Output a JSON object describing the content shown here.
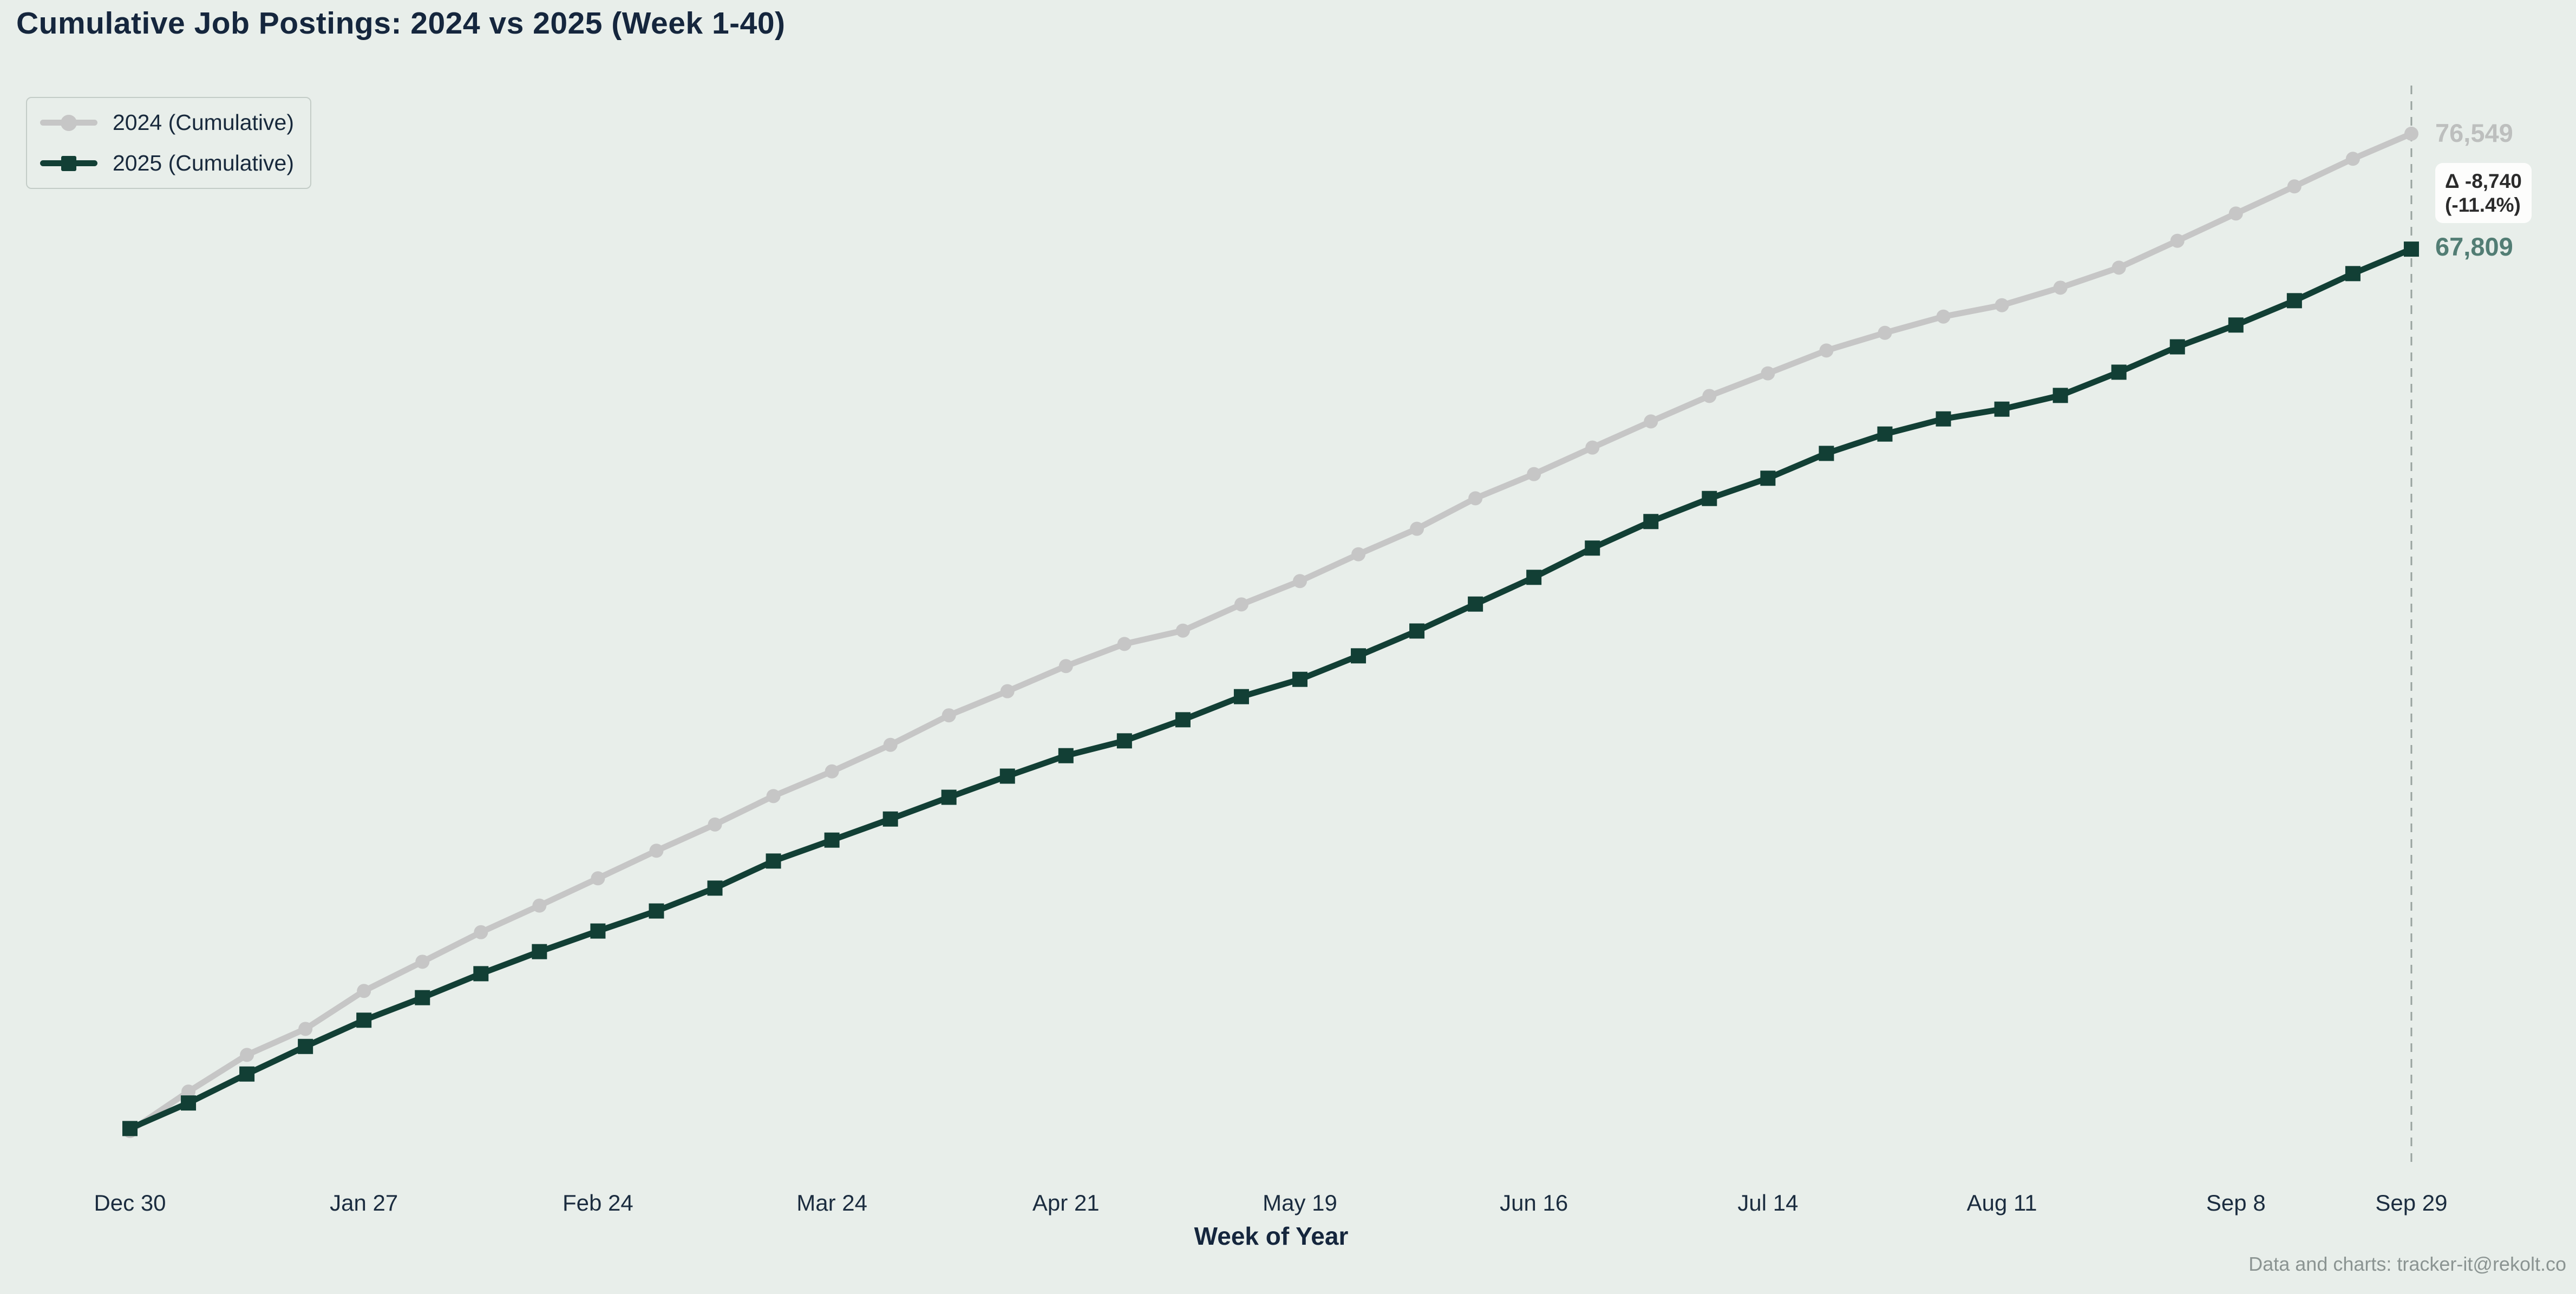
{
  "page": {
    "background_color": "#e8eeea",
    "footer": "Data and charts: tracker-it@rekolt.co"
  },
  "legend": {
    "items": [
      {
        "label": "2024 (Cumulative)",
        "color": "#c6c6c6",
        "marker": "circle"
      },
      {
        "label": "2025 (Cumulative)",
        "color": "#123f35",
        "marker": "square"
      }
    ]
  },
  "annotations": {
    "end_label_2024": "76,549",
    "end_label_2024_color": "#bdbfbe",
    "delta_line1": "Δ -8,740",
    "delta_line2": "(-11.4%)",
    "delta_box_color": "#fdfdfc",
    "end_label_2025": "67,809",
    "end_label_2025_color": "#527d74",
    "dashed_guide_week": 40,
    "dashed_guide_color": "#99a39f"
  },
  "chart_data": {
    "type": "line",
    "title": "Cumulative Job Postings: 2024 vs 2025 (Week 1-40)",
    "xlabel": "Week of Year",
    "ylabel": "",
    "grid": false,
    "legend_position": "upper left",
    "y_axis_labels_visible": false,
    "ylim": [
      0,
      80000
    ],
    "weeks": [
      1,
      2,
      3,
      4,
      5,
      6,
      7,
      8,
      9,
      10,
      11,
      12,
      13,
      14,
      15,
      16,
      17,
      18,
      19,
      20,
      21,
      22,
      23,
      24,
      25,
      26,
      27,
      28,
      29,
      30,
      31,
      32,
      33,
      34,
      35,
      36,
      37,
      38,
      39,
      40
    ],
    "x_ticks": [
      {
        "week": 1,
        "label": "Dec 30"
      },
      {
        "week": 5,
        "label": "Jan 27"
      },
      {
        "week": 9,
        "label": "Feb 24"
      },
      {
        "week": 13,
        "label": "Mar 24"
      },
      {
        "week": 17,
        "label": "Apr 21"
      },
      {
        "week": 21,
        "label": "May 19"
      },
      {
        "week": 25,
        "label": "Jun 16"
      },
      {
        "week": 29,
        "label": "Jul 14"
      },
      {
        "week": 33,
        "label": "Aug 11"
      },
      {
        "week": 37,
        "label": "Sep 8"
      },
      {
        "week": 40,
        "label": "Sep 29"
      }
    ],
    "series": [
      {
        "name": "2024 (Cumulative)",
        "color": "#c6c6c6",
        "marker": "circle",
        "final_value": 76549,
        "values": [
          1023,
          4012,
          6790,
          8761,
          11632,
          13845,
          16080,
          18095,
          20160,
          22251,
          24237,
          26390,
          28258,
          30270,
          32505,
          34330,
          36232,
          37910,
          38921,
          40905,
          42670,
          44702,
          46630,
          48940,
          50771,
          52780,
          54760,
          56690,
          58400,
          60132,
          61470,
          62701,
          63562,
          64890,
          66405,
          68440,
          70505,
          72558,
          74650,
          76549
        ]
      },
      {
        "name": "2025 (Cumulative)",
        "color": "#123f35",
        "marker": "square",
        "final_value": 67809,
        "values": [
          1214,
          3150,
          5342,
          7430,
          9418,
          11125,
          12940,
          14610,
          16170,
          17688,
          19420,
          21470,
          23055,
          24652,
          26300,
          27900,
          29450,
          30572,
          32170,
          33920,
          35230,
          37010,
          38890,
          40930,
          42955,
          45170,
          47180,
          48925,
          50460,
          52340,
          53805,
          54952,
          55690,
          56730,
          58490,
          60410,
          62060,
          63905,
          65955,
          67809
        ]
      }
    ],
    "final_delta": {
      "absolute": -8740,
      "percent": -11.4
    }
  }
}
